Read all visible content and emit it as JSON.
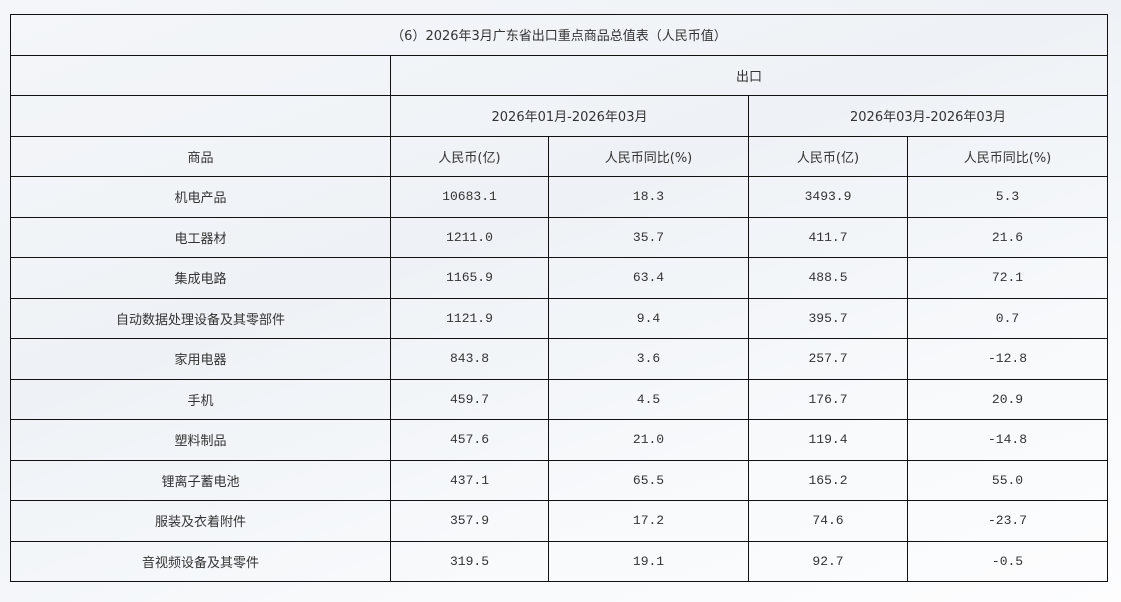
{
  "title": "（6）2026年3月广东省出口重点商品总值表（人民币值）",
  "group_header": "出口",
  "periods": [
    "2026年01月-2026年03月",
    "2026年03月-2026年03月"
  ],
  "columns": [
    "商品",
    "人民币(亿)",
    "人民币同比(%)",
    "人民币(亿)",
    "人民币同比(%)"
  ],
  "rows": [
    [
      "机电产品",
      "10683.1",
      "18.3",
      "3493.9",
      "5.3"
    ],
    [
      "电工器材",
      "1211.0",
      "35.7",
      "411.7",
      "21.6"
    ],
    [
      "集成电路",
      "1165.9",
      "63.4",
      "488.5",
      "72.1"
    ],
    [
      "自动数据处理设备及其零部件",
      "1121.9",
      "9.4",
      "395.7",
      "0.7"
    ],
    [
      "家用电器",
      "843.8",
      "3.6",
      "257.7",
      "-12.8"
    ],
    [
      "手机",
      "459.7",
      "4.5",
      "176.7",
      "20.9"
    ],
    [
      "塑料制品",
      "457.6",
      "21.0",
      "119.4",
      "-14.8"
    ],
    [
      "锂离子蓄电池",
      "437.1",
      "65.5",
      "165.2",
      "55.0"
    ],
    [
      "服装及衣着附件",
      "357.9",
      "17.2",
      "74.6",
      "-23.7"
    ],
    [
      "音视频设备及其零件",
      "319.5",
      "19.1",
      "92.7",
      "-0.5"
    ]
  ]
}
